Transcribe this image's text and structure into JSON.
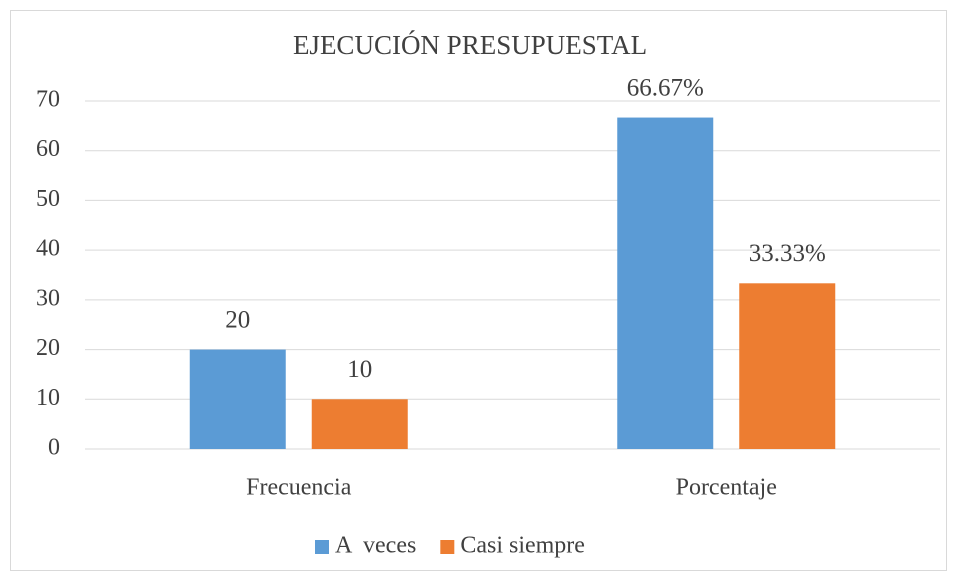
{
  "chart_data": {
    "type": "bar",
    "title": "EJECUCIÓN PRESUPUESTAL",
    "categories": [
      "Frecuencia",
      "Porcentaje"
    ],
    "series": [
      {
        "name": "A  veces",
        "color": "#5b9bd5",
        "values": [
          20,
          66.67
        ],
        "value_labels": [
          "20",
          "66.67%"
        ]
      },
      {
        "name": "Casi siempre",
        "color": "#ed7d31",
        "values": [
          10,
          33.33
        ],
        "value_labels": [
          "10",
          "33.33%"
        ]
      }
    ],
    "ylim": [
      0,
      70
    ],
    "yticks": [
      0,
      10,
      20,
      30,
      40,
      50,
      60,
      70
    ],
    "grid": true,
    "legend": "bottom"
  }
}
